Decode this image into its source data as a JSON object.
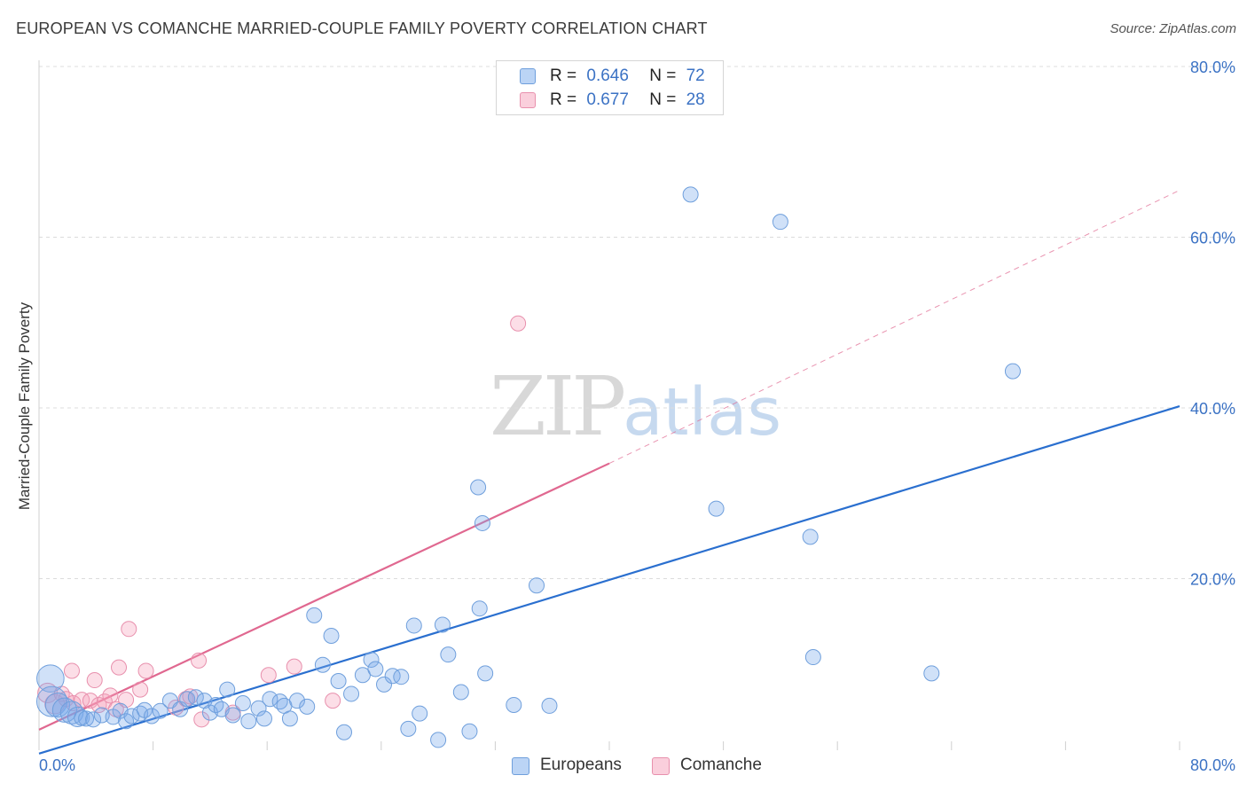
{
  "header": {
    "title": "EUROPEAN VS COMANCHE MARRIED-COUPLE FAMILY POVERTY CORRELATION CHART",
    "source": "Source: ZipAtlas.com"
  },
  "legend": {
    "items": [
      {
        "r_label": "R =",
        "r_value": "0.646",
        "n_label": "N =",
        "n_value": "72"
      },
      {
        "r_label": "R =",
        "r_value": "0.677",
        "n_label": "N =",
        "n_value": "28"
      }
    ]
  },
  "bottom_legend": {
    "europeans": "Europeans",
    "comanche": "Comanche"
  },
  "watermark": {
    "zip": "ZIP",
    "atlas": "atlas"
  },
  "colors": {
    "european_fill": "rgba(120,170,235,0.35)",
    "european_stroke": "#6f9fdc",
    "comanche_fill": "rgba(245,160,185,0.35)",
    "comanche_stroke": "#e890ad",
    "european_line": "#2a6fcf",
    "comanche_line": "#e06890",
    "tick_text": "#3b72c4"
  },
  "chart_data": {
    "type": "scatter",
    "title": "EUROPEAN VS COMANCHE MARRIED-COUPLE FAMILY POVERTY CORRELATION CHART",
    "xlabel": "",
    "ylabel": "Married-Couple Family Poverty",
    "xlim": [
      0,
      80
    ],
    "ylim": [
      0,
      80
    ],
    "x_tick_labels": [
      "0.0%",
      "80.0%"
    ],
    "y_ticks": [
      20,
      40,
      60,
      80
    ],
    "y_tick_labels": [
      "20.0%",
      "40.0%",
      "60.0%",
      "80.0%"
    ],
    "grid": true,
    "legend_position": "top-center",
    "series": [
      {
        "name": "Europeans",
        "R": 0.646,
        "N": 72,
        "trend": {
          "x0": 0,
          "y0": -0.5,
          "x1": 80,
          "y1": 40.2
        },
        "points": [
          [
            0.8,
            8.3,
            1.8
          ],
          [
            0.9,
            5.6,
            2.0
          ],
          [
            1.3,
            5.2,
            1.6
          ],
          [
            1.8,
            4.6,
            1.6
          ],
          [
            2.3,
            4.3,
            1.5
          ],
          [
            2.7,
            3.8,
            1.3
          ],
          [
            3.0,
            3.7,
            1.0
          ],
          [
            3.3,
            3.6,
            1.0
          ],
          [
            3.8,
            3.5,
            1.0
          ],
          [
            4.4,
            4.0,
            1.0
          ],
          [
            5.2,
            3.8,
            1.0
          ],
          [
            5.7,
            4.5,
            1.0
          ],
          [
            6.1,
            3.3,
            1.0
          ],
          [
            6.5,
            3.9,
            1.0
          ],
          [
            7.1,
            4.2,
            1.0
          ],
          [
            7.4,
            4.6,
            1.0
          ],
          [
            7.9,
            3.9,
            1.0
          ],
          [
            8.5,
            4.5,
            1.0
          ],
          [
            9.2,
            5.7,
            1.0
          ],
          [
            9.9,
            4.7,
            1.0
          ],
          [
            10.4,
            5.9,
            1.0
          ],
          [
            11.0,
            6.1,
            1.0
          ],
          [
            11.6,
            5.7,
            1.0
          ],
          [
            12.0,
            4.3,
            1.0
          ],
          [
            12.4,
            5.2,
            1.0
          ],
          [
            12.8,
            4.7,
            1.0
          ],
          [
            13.2,
            7.0,
            1.0
          ],
          [
            13.6,
            4.0,
            1.0
          ],
          [
            14.3,
            5.4,
            1.0
          ],
          [
            14.7,
            3.3,
            1.0
          ],
          [
            15.4,
            4.8,
            1.0
          ],
          [
            15.8,
            3.6,
            1.0
          ],
          [
            16.2,
            5.9,
            1.0
          ],
          [
            16.9,
            5.6,
            1.0
          ],
          [
            17.2,
            5.1,
            1.0
          ],
          [
            17.6,
            3.6,
            1.0
          ],
          [
            18.1,
            5.7,
            1.0
          ],
          [
            18.8,
            5.0,
            1.0
          ],
          [
            19.3,
            15.7,
            1.0
          ],
          [
            19.9,
            9.9,
            1.0
          ],
          [
            20.5,
            13.3,
            1.0
          ],
          [
            21.0,
            8.0,
            1.0
          ],
          [
            21.4,
            2.0,
            1.0
          ],
          [
            21.9,
            6.5,
            1.0
          ],
          [
            22.7,
            8.7,
            1.0
          ],
          [
            23.3,
            10.5,
            1.0
          ],
          [
            23.6,
            9.4,
            1.0
          ],
          [
            24.2,
            7.6,
            1.0
          ],
          [
            24.8,
            8.6,
            1.0
          ],
          [
            25.4,
            8.5,
            1.0
          ],
          [
            25.9,
            2.4,
            1.0
          ],
          [
            26.3,
            14.5,
            1.0
          ],
          [
            26.7,
            4.2,
            1.0
          ],
          [
            28.0,
            1.1,
            1.0
          ],
          [
            28.3,
            14.6,
            1.0
          ],
          [
            28.7,
            11.1,
            1.0
          ],
          [
            29.6,
            6.7,
            1.0
          ],
          [
            30.2,
            2.1,
            1.0
          ],
          [
            30.8,
            30.7,
            1.0
          ],
          [
            30.9,
            16.5,
            1.0
          ],
          [
            31.1,
            26.5,
            1.0
          ],
          [
            31.3,
            8.9,
            1.0
          ],
          [
            33.3,
            5.2,
            1.0
          ],
          [
            34.9,
            19.2,
            1.0
          ],
          [
            35.8,
            5.1,
            1.0
          ],
          [
            45.7,
            65.0,
            1.0
          ],
          [
            47.5,
            28.2,
            1.0
          ],
          [
            52.0,
            61.8,
            1.0
          ],
          [
            54.1,
            24.9,
            1.0
          ],
          [
            54.3,
            10.8,
            1.0
          ],
          [
            62.6,
            8.9,
            1.0
          ],
          [
            68.3,
            44.3,
            1.0
          ]
        ]
      },
      {
        "name": "Comanche",
        "R": 0.677,
        "N": 28,
        "trend": {
          "x0": 0,
          "y0": 2.3,
          "x1": 40,
          "y1": 33.5,
          "dashed_x1": 80,
          "dashed_y1": 65.5
        },
        "points": [
          [
            0.6,
            6.6,
            1.3
          ],
          [
            1.1,
            5.3,
            1.3
          ],
          [
            1.6,
            6.5,
            1.0
          ],
          [
            1.9,
            5.9,
            1.0
          ],
          [
            2.4,
            5.4,
            1.0
          ],
          [
            2.3,
            9.2,
            1.0
          ],
          [
            3.0,
            5.8,
            1.0
          ],
          [
            3.6,
            5.7,
            1.0
          ],
          [
            3.9,
            8.1,
            1.0
          ],
          [
            4.2,
            5.2,
            1.0
          ],
          [
            4.6,
            5.6,
            1.0
          ],
          [
            5.0,
            6.3,
            1.0
          ],
          [
            5.4,
            4.7,
            1.0
          ],
          [
            5.6,
            9.6,
            1.0
          ],
          [
            6.1,
            5.8,
            1.0
          ],
          [
            6.3,
            14.1,
            1.0
          ],
          [
            7.1,
            7.0,
            1.0
          ],
          [
            7.5,
            9.2,
            1.0
          ],
          [
            9.6,
            4.9,
            1.0
          ],
          [
            10.3,
            5.9,
            1.0
          ],
          [
            11.2,
            10.4,
            1.0
          ],
          [
            11.4,
            3.5,
            1.0
          ],
          [
            13.6,
            4.3,
            1.0
          ],
          [
            16.1,
            8.7,
            1.0
          ],
          [
            17.9,
            9.7,
            1.0
          ],
          [
            20.6,
            5.7,
            1.0
          ],
          [
            33.6,
            49.9,
            1.0
          ],
          [
            10.6,
            6.2,
            1.0
          ]
        ]
      }
    ]
  }
}
